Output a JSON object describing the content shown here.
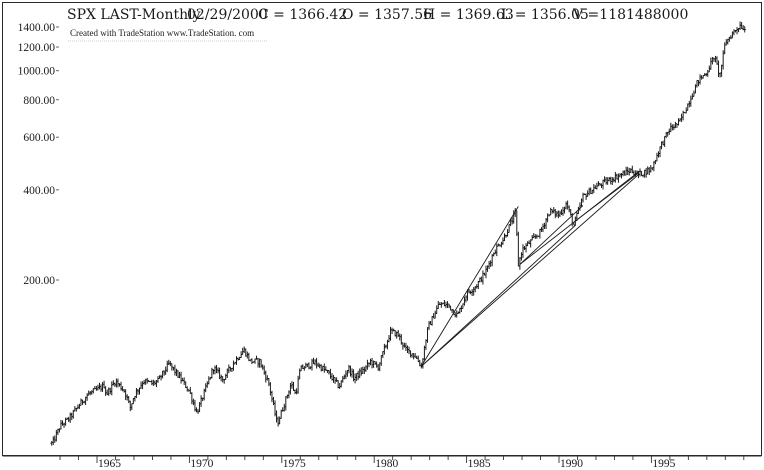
{
  "header": {
    "symbol": "SPX LAST-Monthly",
    "date": "02/29/2000",
    "close": "C = 1366.42",
    "open": "O = 1357.56",
    "high": "H = 1369.63",
    "low": "L = 1356.05",
    "volume": "V =1181488000"
  },
  "credit": "Created with TradeStation www.TradeStation. com",
  "chart_data": {
    "type": "bar",
    "style": "ohlc-monthly",
    "y_scale": "log",
    "ylim": [
      55,
      1500
    ],
    "xlim": [
      1962.5,
      2000.25
    ],
    "y_ticks": [
      "200.00",
      "400.00",
      "600.00",
      "800.00",
      "1000.00",
      "1200.00",
      "1400.00"
    ],
    "y_tick_values": [
      200,
      400,
      600,
      800,
      1000,
      1200,
      1400
    ],
    "x_ticks": [
      "1965",
      "1970",
      "1975",
      "1980",
      "1985",
      "1990",
      "1995"
    ],
    "x_tick_values": [
      1965,
      1970,
      1975,
      1980,
      1985,
      1990,
      1995
    ],
    "grid": false,
    "series_points": [
      [
        1962.6,
        57
      ],
      [
        1963.0,
        65
      ],
      [
        1963.5,
        69
      ],
      [
        1964.0,
        76
      ],
      [
        1964.5,
        83
      ],
      [
        1965.0,
        86
      ],
      [
        1965.4,
        89
      ],
      [
        1965.5,
        83
      ],
      [
        1966.0,
        92
      ],
      [
        1966.5,
        85
      ],
      [
        1966.8,
        75
      ],
      [
        1967.0,
        82
      ],
      [
        1967.5,
        92
      ],
      [
        1968.0,
        90
      ],
      [
        1968.3,
        92
      ],
      [
        1968.9,
        105
      ],
      [
        1969.5,
        94
      ],
      [
        1970.0,
        85
      ],
      [
        1970.4,
        72
      ],
      [
        1970.8,
        84
      ],
      [
        1971.3,
        102
      ],
      [
        1971.8,
        93
      ],
      [
        1972.5,
        108
      ],
      [
        1972.95,
        117
      ],
      [
        1973.3,
        107
      ],
      [
        1973.8,
        107
      ],
      [
        1974.3,
        90
      ],
      [
        1974.75,
        66
      ],
      [
        1975.0,
        73
      ],
      [
        1975.5,
        90
      ],
      [
        1975.75,
        83
      ],
      [
        1976.0,
        101
      ],
      [
        1976.8,
        106
      ],
      [
        1977.5,
        98
      ],
      [
        1978.1,
        88
      ],
      [
        1978.6,
        102
      ],
      [
        1978.9,
        94
      ],
      [
        1979.5,
        101
      ],
      [
        1979.8,
        107
      ],
      [
        1980.2,
        102
      ],
      [
        1980.9,
        135
      ],
      [
        1981.3,
        131
      ],
      [
        1981.7,
        117
      ],
      [
        1982.2,
        112
      ],
      [
        1982.55,
        103
      ],
      [
        1982.9,
        138
      ],
      [
        1983.5,
        166
      ],
      [
        1984.0,
        165
      ],
      [
        1984.5,
        152
      ],
      [
        1985.0,
        180
      ],
      [
        1985.5,
        191
      ],
      [
        1986.0,
        211
      ],
      [
        1986.5,
        250
      ],
      [
        1987.0,
        275
      ],
      [
        1987.65,
        336
      ],
      [
        1987.8,
        225
      ],
      [
        1988.0,
        252
      ],
      [
        1988.5,
        270
      ],
      [
        1989.0,
        290
      ],
      [
        1989.5,
        340
      ],
      [
        1990.0,
        330
      ],
      [
        1990.4,
        360
      ],
      [
        1990.8,
        305
      ],
      [
        1991.3,
        380
      ],
      [
        1992.0,
        410
      ],
      [
        1993.0,
        440
      ],
      [
        1993.9,
        465
      ],
      [
        1994.3,
        450
      ],
      [
        1995.0,
        470
      ],
      [
        1995.5,
        560
      ],
      [
        1996.0,
        640
      ],
      [
        1996.5,
        670
      ],
      [
        1997.0,
        780
      ],
      [
        1997.5,
        920
      ],
      [
        1998.0,
        990
      ],
      [
        1998.4,
        1120
      ],
      [
        1998.7,
        960
      ],
      [
        1999.0,
        1240
      ],
      [
        1999.5,
        1360
      ],
      [
        1999.8,
        1420
      ],
      [
        2000.1,
        1370
      ]
    ],
    "trendlines": [
      {
        "from": [
          1982.55,
          103
        ],
        "to": [
          1987.8,
          352
        ]
      },
      {
        "from": [
          1982.55,
          103
        ],
        "to": [
          1990.9,
          305
        ]
      },
      {
        "from": [
          1982.55,
          103
        ],
        "to": [
          1994.3,
          450
        ]
      },
      {
        "from": [
          1987.9,
          226
        ],
        "to": [
          1991.3,
          355
        ]
      },
      {
        "from": [
          1987.9,
          226
        ],
        "to": [
          1994.35,
          462
        ]
      },
      {
        "from": [
          1990.8,
          312
        ],
        "to": [
          1994.3,
          455
        ]
      }
    ]
  }
}
